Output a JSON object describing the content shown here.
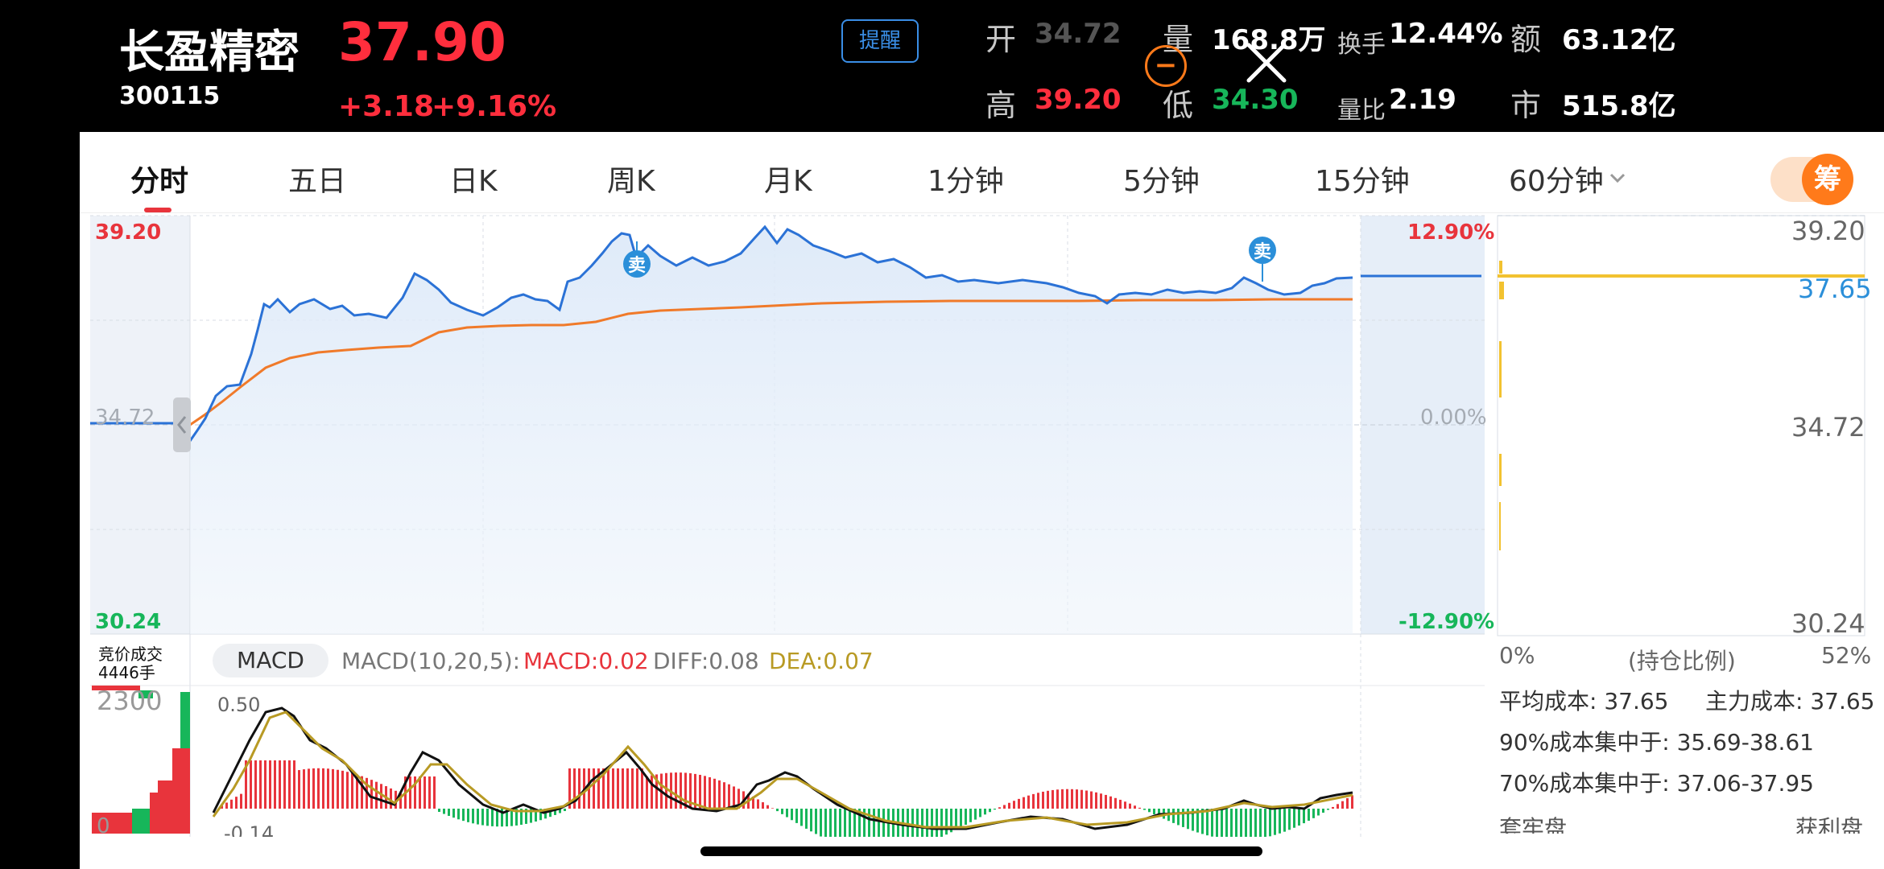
{
  "stock": {
    "name": "长盈精密",
    "code": "300115",
    "price": "37.90",
    "change": "+3.18",
    "change_pct": "+9.16%",
    "remind_label": "提醒"
  },
  "stats": {
    "open_label": "开",
    "open_value": "34.72",
    "high_label": "高",
    "high_value": "39.20",
    "volume_label": "量",
    "volume_value": "168.8万",
    "low_label": "低",
    "low_value": "34.30",
    "turnover_label": "换手",
    "turnover_value": "12.44%",
    "volume_ratio_label": "量比",
    "volume_ratio_value": "2.19",
    "amount_label": "额",
    "amount_value": "63.12亿",
    "market_cap_label": "市",
    "market_cap_value": "515.8亿"
  },
  "tabs": [
    {
      "label": "分时",
      "active": true
    },
    {
      "label": "五日"
    },
    {
      "label": "日K"
    },
    {
      "label": "周K"
    },
    {
      "label": "月K"
    },
    {
      "label": "1分钟"
    },
    {
      "label": "5分钟"
    },
    {
      "label": "15分钟"
    },
    {
      "label": "60分钟"
    }
  ],
  "chip_toggle_label": "筹",
  "intraday": {
    "y_top": "39.20",
    "y_mid": "34.72",
    "y_bot": "30.24",
    "pct_top": "12.90%",
    "pct_mid": "0.00%",
    "pct_bot": "-12.90%",
    "sell_marker_label": "卖",
    "series_price_color": "#2b72d6",
    "series_avg_color": "#f07a2a"
  },
  "auction": {
    "label": "竞价成交",
    "volume": "4446手",
    "axis_value": "2300",
    "axis_bottom": "0"
  },
  "macd": {
    "pill_label": "MACD",
    "params": "MACD(10,20,5):",
    "macd_text": "MACD:0.02",
    "diff_text": "DIFF:0.08",
    "dea_text": "DEA:0.07",
    "axis_top": "0.50",
    "axis_bottom": "-0.14"
  },
  "chip_panel": {
    "price_top": "39.20",
    "price_current": "37.65",
    "price_mid": "34.72",
    "price_bot": "30.24",
    "ratio_min": "0%",
    "ratio_label": "(持仓比例)",
    "ratio_max": "52%",
    "avg_cost": "平均成本: 37.65",
    "main_cost": "主力成本: 37.65",
    "conc90": "90%成本集中于: 35.69-38.61",
    "conc70": "70%成本集中于: 37.06-37.95",
    "trapped_label": "套牢盘",
    "profit_label": "获利盘"
  },
  "colors": {
    "up": "#ff2e3d",
    "down": "#17b65a",
    "accent": "#ff7a1a",
    "link": "#3a8ee6"
  }
}
